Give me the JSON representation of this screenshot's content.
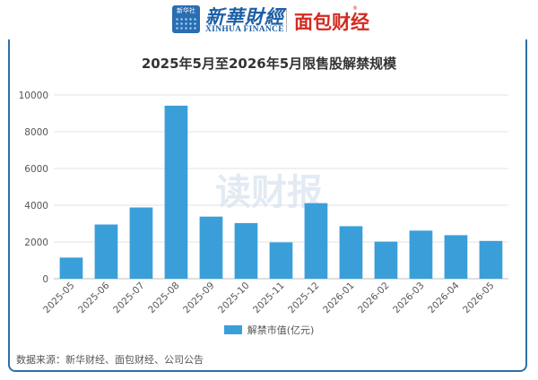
{
  "header": {
    "xinhua_badge": "新华社",
    "xinhua_finance_cn": "新華財經",
    "xinhua_finance_en": "XINHUA FINANCE",
    "mianbao_logo": "面包财经",
    "registered_mark": "®"
  },
  "watermark": "读财报",
  "colors": {
    "bar": "#3a9fd9",
    "frame": "#2f6fa8",
    "brand_red": "#d42a20",
    "brand_blue": "#1d5fa5"
  },
  "chart_data": {
    "type": "bar",
    "title": "2025年5月至2026年5月限售股解禁规模",
    "categories": [
      "2025-05",
      "2025-06",
      "2025-07",
      "2025-08",
      "2025-09",
      "2025-10",
      "2025-11",
      "2025-12",
      "2026-01",
      "2026-02",
      "2026-03",
      "2026-04",
      "2026-05"
    ],
    "series": [
      {
        "name": "解禁市值(亿元)",
        "values": [
          1150,
          2950,
          3880,
          9420,
          3380,
          3030,
          1980,
          4110,
          2860,
          2020,
          2620,
          2370,
          2060
        ]
      }
    ],
    "ylim": [
      0,
      10000
    ],
    "yticks": [
      0,
      2000,
      4000,
      6000,
      8000,
      10000
    ],
    "grid": true,
    "legend_position": "bottom"
  },
  "source": "数据来源：新华财经、面包财经、公司公告"
}
